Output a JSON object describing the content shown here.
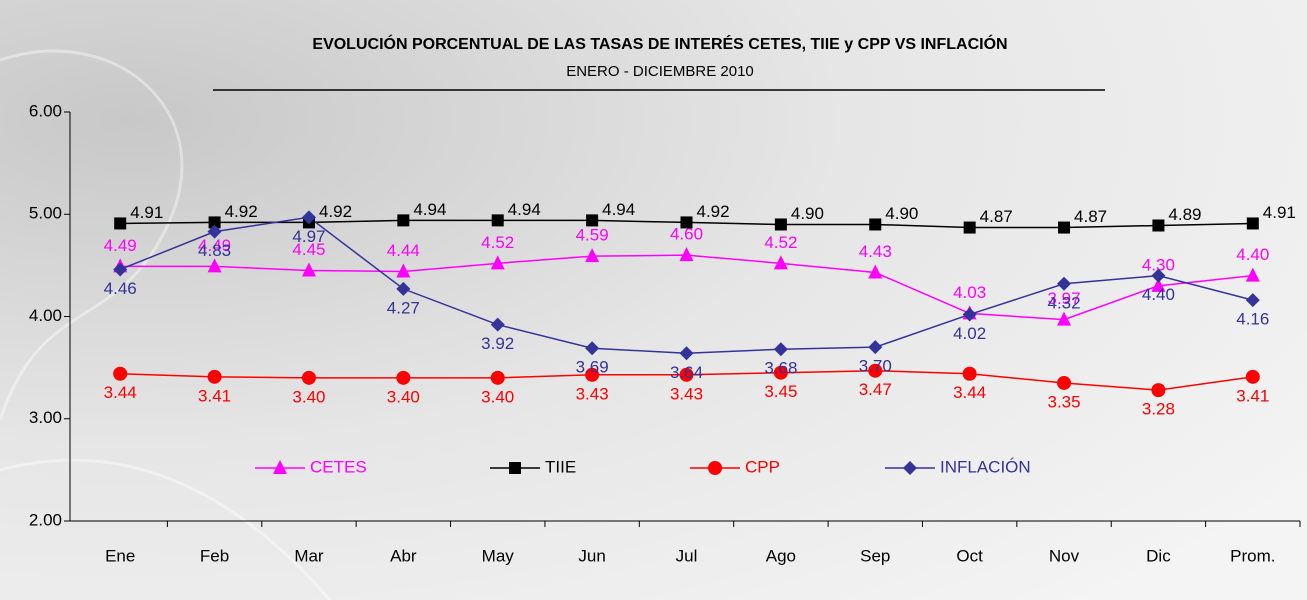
{
  "chart_data": {
    "type": "line",
    "title": "EVOLUCIÓN  PORCENTUAL DE LAS TASAS DE INTERÉS  CETES, TIIE  y CPP VS INFLACIÓN",
    "subtitle": "ENERO - DICIEMBRE 2010",
    "categories": [
      "Ene",
      "Feb",
      "Mar",
      "Abr",
      "May",
      "Jun",
      "Jul",
      "Ago",
      "Sep",
      "Oct",
      "Nov",
      "Dic",
      "Prom."
    ],
    "series": [
      {
        "name": "CETES",
        "color": "#ff00ff",
        "marker": "triangle",
        "values": [
          4.49,
          4.49,
          4.45,
          4.44,
          4.52,
          4.59,
          4.6,
          4.52,
          4.43,
          4.03,
          3.97,
          4.3,
          4.4
        ],
        "value_labels": [
          "4.49",
          "4.49",
          "4.45",
          "4.44",
          "4.52",
          "4.59",
          "4.60",
          "4.52",
          "4.43",
          "4.03",
          "3.97",
          "4.30",
          "4.40"
        ]
      },
      {
        "name": "TIIE",
        "color": "#000000",
        "marker": "square",
        "values": [
          4.91,
          4.92,
          4.92,
          4.94,
          4.94,
          4.94,
          4.92,
          4.9,
          4.9,
          4.87,
          4.87,
          4.89,
          4.91
        ],
        "value_labels": [
          "4.91",
          "4.92",
          "4.92",
          "4.94",
          "4.94",
          "4.94",
          "4.92",
          "4.90",
          "4.90",
          "4.87",
          "4.87",
          "4.89",
          "4.91"
        ]
      },
      {
        "name": "CPP",
        "color": "#ff0000",
        "marker": "circle",
        "values": [
          3.44,
          3.41,
          3.4,
          3.4,
          3.4,
          3.43,
          3.43,
          3.45,
          3.47,
          3.44,
          3.35,
          3.28,
          3.41
        ],
        "value_labels": [
          "3.44",
          "3.41",
          "3.40",
          "3.40",
          "3.40",
          "3.43",
          "3.43",
          "3.45",
          "3.47",
          "3.44",
          "3.35",
          "3.28",
          "3.41"
        ]
      },
      {
        "name": "INFLACIÓN",
        "color": "#333399",
        "marker": "diamond",
        "values": [
          4.46,
          4.83,
          4.97,
          4.27,
          3.92,
          3.69,
          3.64,
          3.68,
          3.7,
          4.02,
          4.32,
          4.4,
          4.16
        ],
        "value_labels": [
          "4.46",
          "4.83",
          "4.97",
          "4.27",
          "3.92",
          "3.69",
          "3.64",
          "3.68",
          "3.70",
          "4.02",
          "4.32",
          "4.40",
          "4.16"
        ]
      }
    ],
    "ylim": [
      2,
      6
    ],
    "yticks": [
      {
        "value": 2,
        "label": "2.00"
      },
      {
        "value": 3,
        "label": "3.00"
      },
      {
        "value": 4,
        "label": "4.00"
      },
      {
        "value": 5,
        "label": "5.00"
      },
      {
        "value": 6,
        "label": "6.00"
      }
    ]
  }
}
